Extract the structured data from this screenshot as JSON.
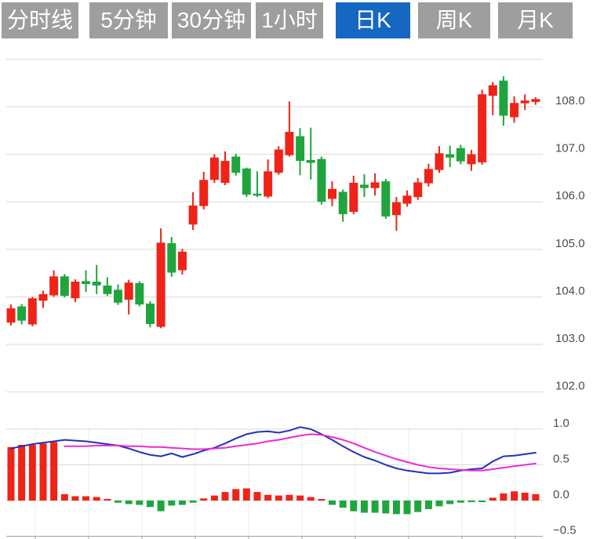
{
  "tabs": [
    {
      "label": "分时线",
      "active": false
    },
    {
      "label": "5分钟",
      "active": false
    },
    {
      "label": "30分钟",
      "active": false
    },
    {
      "label": "1小时",
      "active": false
    },
    {
      "label": "日K",
      "active": true
    },
    {
      "label": "周K",
      "active": false
    },
    {
      "label": "月K",
      "active": false
    }
  ],
  "colors": {
    "up": "#ef2318",
    "down": "#1fa53e",
    "dif_line": "#2430bb",
    "dea_line": "#ea2bd4",
    "tab_bg": "#9e9e9e",
    "tab_active_bg": "#1567c1",
    "grid": "#d9d9d9",
    "grid_faint": "#ececec",
    "axis": "#a0a0a0",
    "label": "#4d4d4d"
  },
  "chart_data": {
    "type": "candlestick+macd",
    "price_panel": {
      "axis_ticks": [
        108.0,
        107.0,
        106.0,
        105.0,
        104.0,
        103.0,
        102.0
      ],
      "grid_values": [
        109.0,
        108.0,
        107.0,
        106.0,
        105.0,
        104.0,
        103.0,
        102.0
      ],
      "ylim": [
        101.9,
        109.1
      ],
      "candles_ohlc": [
        [
          103.46,
          103.84,
          103.4,
          103.76
        ],
        [
          103.8,
          103.85,
          103.42,
          103.5
        ],
        [
          103.42,
          104.0,
          103.38,
          103.97
        ],
        [
          103.92,
          104.13,
          103.77,
          104.06
        ],
        [
          104.03,
          104.56,
          104.0,
          104.43
        ],
        [
          104.43,
          104.48,
          103.99,
          104.02
        ],
        [
          103.97,
          104.37,
          103.89,
          104.32
        ],
        [
          104.33,
          104.56,
          104.1,
          104.27
        ],
        [
          104.32,
          104.67,
          104.06,
          104.24
        ],
        [
          104.24,
          104.41,
          104.02,
          104.06
        ],
        [
          104.15,
          104.26,
          103.83,
          103.88
        ],
        [
          103.94,
          104.36,
          103.63,
          104.3
        ],
        [
          104.29,
          104.33,
          103.8,
          103.84
        ],
        [
          103.86,
          103.91,
          103.36,
          103.43
        ],
        [
          103.37,
          105.44,
          103.34,
          105.14
        ],
        [
          105.13,
          105.26,
          104.42,
          104.51
        ],
        [
          104.56,
          105.01,
          104.47,
          104.95
        ],
        [
          105.52,
          106.2,
          105.41,
          105.92
        ],
        [
          105.91,
          106.63,
          105.84,
          106.46
        ],
        [
          106.46,
          107.0,
          106.4,
          106.93
        ],
        [
          106.4,
          107.06,
          106.35,
          106.86
        ],
        [
          106.95,
          107.01,
          106.55,
          106.61
        ],
        [
          106.7,
          106.72,
          106.1,
          106.15
        ],
        [
          106.17,
          106.64,
          106.1,
          106.13
        ],
        [
          106.11,
          106.89,
          106.08,
          106.64
        ],
        [
          106.61,
          107.17,
          106.57,
          107.1
        ],
        [
          106.98,
          108.11,
          106.95,
          107.47
        ],
        [
          107.38,
          107.55,
          106.56,
          106.86
        ],
        [
          106.88,
          107.56,
          106.47,
          106.82
        ],
        [
          106.9,
          106.95,
          105.94,
          106.0
        ],
        [
          106.06,
          106.43,
          105.91,
          106.27
        ],
        [
          106.21,
          106.26,
          105.58,
          105.74
        ],
        [
          105.79,
          106.55,
          105.74,
          106.4
        ],
        [
          106.36,
          106.58,
          106.1,
          106.29
        ],
        [
          106.29,
          106.6,
          106.13,
          106.41
        ],
        [
          106.43,
          106.48,
          105.64,
          105.69
        ],
        [
          105.72,
          106.1,
          105.39,
          105.99
        ],
        [
          105.96,
          106.24,
          105.9,
          106.13
        ],
        [
          106.1,
          106.5,
          106.04,
          106.41
        ],
        [
          106.39,
          106.8,
          106.32,
          106.69
        ],
        [
          106.67,
          107.17,
          106.61,
          107.02
        ],
        [
          107.0,
          107.18,
          106.73,
          106.93
        ],
        [
          107.13,
          107.2,
          106.79,
          106.85
        ],
        [
          106.79,
          107.09,
          106.65,
          107.0
        ],
        [
          106.83,
          108.36,
          106.78,
          108.26
        ],
        [
          108.23,
          108.52,
          107.82,
          108.45
        ],
        [
          108.55,
          108.64,
          107.6,
          107.81
        ],
        [
          107.78,
          108.22,
          107.66,
          108.08
        ],
        [
          108.07,
          108.26,
          107.93,
          108.13
        ],
        [
          108.1,
          108.2,
          108.04,
          108.16
        ]
      ]
    },
    "macd_panel": {
      "axis_ticks": [
        1.0,
        0.5,
        0.0,
        -0.5
      ],
      "ylim": [
        -0.7,
        1.2
      ],
      "hist": [
        0.75,
        0.78,
        0.78,
        0.8,
        0.82,
        0.09,
        0.06,
        0.06,
        0.05,
        0.02,
        -0.03,
        -0.05,
        -0.06,
        -0.09,
        -0.15,
        -0.07,
        -0.06,
        -0.03,
        0.03,
        0.07,
        0.12,
        0.16,
        0.17,
        0.12,
        0.08,
        0.07,
        0.08,
        0.07,
        0.05,
        0.02,
        -0.06,
        -0.1,
        -0.15,
        -0.17,
        -0.17,
        -0.18,
        -0.19,
        -0.19,
        -0.16,
        -0.12,
        -0.08,
        -0.05,
        -0.03,
        -0.02,
        -0.02,
        0.04,
        0.1,
        0.13,
        0.11,
        0.09
      ],
      "dif": [
        0.73,
        0.76,
        0.79,
        0.81,
        0.83,
        0.85,
        0.84,
        0.83,
        0.81,
        0.79,
        0.77,
        0.73,
        0.68,
        0.64,
        0.62,
        0.66,
        0.61,
        0.65,
        0.7,
        0.74,
        0.8,
        0.87,
        0.93,
        0.96,
        0.97,
        0.95,
        0.98,
        1.03,
        1.0,
        0.93,
        0.85,
        0.76,
        0.68,
        0.61,
        0.56,
        0.5,
        0.45,
        0.42,
        0.4,
        0.38,
        0.38,
        0.39,
        0.42,
        0.44,
        0.45,
        0.55,
        0.62,
        0.63,
        0.65,
        0.67
      ],
      "dea": [
        null,
        null,
        null,
        null,
        null,
        0.76,
        0.76,
        0.76,
        0.77,
        0.77,
        0.77,
        0.76,
        0.76,
        0.75,
        0.75,
        0.74,
        0.73,
        0.72,
        0.72,
        0.73,
        0.74,
        0.76,
        0.78,
        0.8,
        0.83,
        0.85,
        0.88,
        0.91,
        0.93,
        0.92,
        0.89,
        0.85,
        0.8,
        0.74,
        0.68,
        0.63,
        0.58,
        0.54,
        0.5,
        0.47,
        0.45,
        0.44,
        0.43,
        0.42,
        0.42,
        0.44,
        0.46,
        0.48,
        0.5,
        0.52
      ]
    }
  }
}
